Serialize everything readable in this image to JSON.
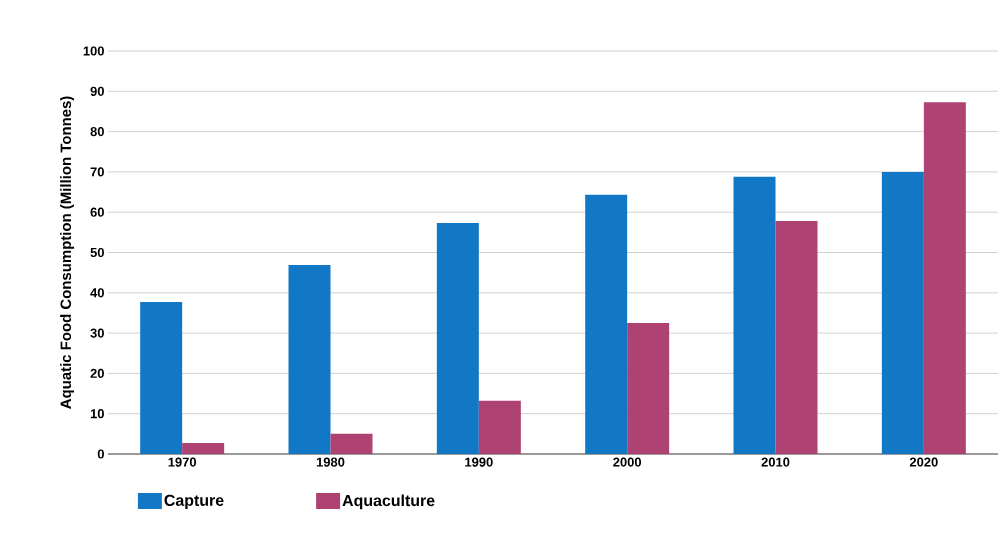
{
  "chart_data": {
    "type": "bar",
    "ylabel": "Aquatic Food Consumption (Million Tonnes)",
    "categories": [
      "1970",
      "1980",
      "1990",
      "2000",
      "2010",
      "2020"
    ],
    "series": [
      {
        "name": "Capture",
        "color": "#1278c6",
        "values": [
          37.7,
          46.9,
          57.3,
          64.3,
          68.8,
          70
        ]
      },
      {
        "name": "Aquaculture",
        "color": "#ae4373",
        "values": [
          2.7,
          5,
          13.2,
          32.5,
          57.8,
          87.3
        ]
      }
    ],
    "ylim": [
      0,
      100
    ],
    "yticks": [
      0,
      10,
      20,
      30,
      40,
      50,
      60,
      70,
      80,
      90,
      100
    ],
    "grid": "y",
    "legend": "bottom left"
  }
}
